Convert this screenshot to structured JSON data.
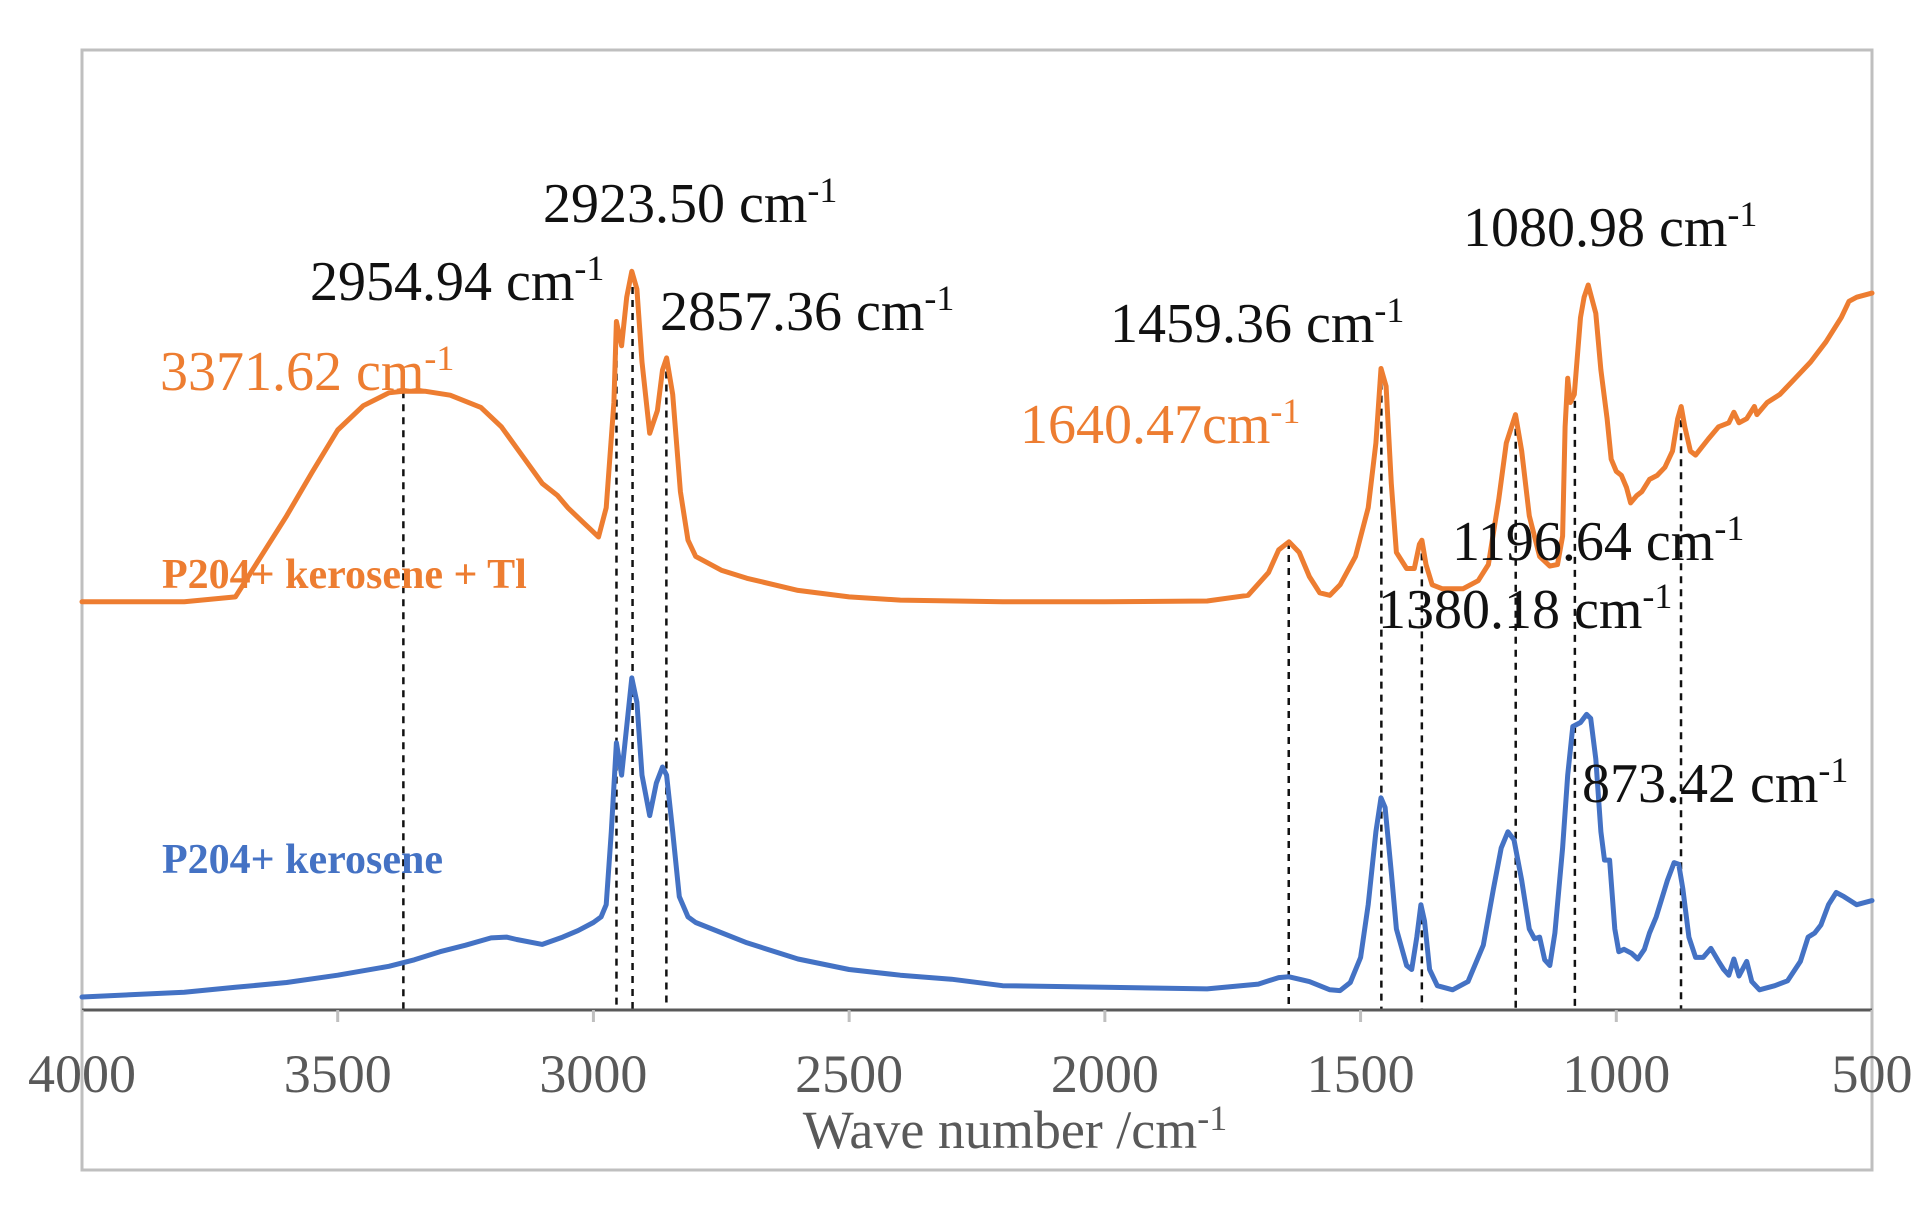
{
  "chart_data": {
    "type": "line",
    "title": "",
    "xlabel": "Wave number /cm-1",
    "ylabel": "",
    "x_reversed": true,
    "xlim": [
      4000,
      500
    ],
    "ylim": [
      0,
      100
    ],
    "y_axis_shown": false,
    "grid": false,
    "x_ticks": [
      4000,
      3500,
      3000,
      2500,
      2000,
      1500,
      1000,
      500
    ],
    "colors": {
      "tl": "#ed7d31",
      "base": "#4472c4",
      "axis": "#bfbfbf",
      "tick_text": "#595959",
      "annot": "#111111"
    },
    "series": [
      {
        "name": "P204+ kerosene + Tl",
        "color": "#ed7d31",
        "points": [
          [
            4000,
            50.4
          ],
          [
            3800,
            50.4
          ],
          [
            3700,
            51.0
          ],
          [
            3650,
            56.0
          ],
          [
            3600,
            61.0
          ],
          [
            3550,
            66.4
          ],
          [
            3500,
            71.6
          ],
          [
            3450,
            74.6
          ],
          [
            3400,
            76.2
          ],
          [
            3370,
            76.4
          ],
          [
            3330,
            76.4
          ],
          [
            3280,
            75.9
          ],
          [
            3220,
            74.4
          ],
          [
            3180,
            72.0
          ],
          [
            3140,
            68.5
          ],
          [
            3100,
            65.0
          ],
          [
            3070,
            63.5
          ],
          [
            3050,
            62.0
          ],
          [
            3020,
            60.2
          ],
          [
            3000,
            59.0
          ],
          [
            2990,
            58.4
          ],
          [
            2975,
            62.0
          ],
          [
            2960,
            75.0
          ],
          [
            2955,
            85.0
          ],
          [
            2945,
            82.0
          ],
          [
            2935,
            88.0
          ],
          [
            2925,
            91.2
          ],
          [
            2915,
            89.0
          ],
          [
            2905,
            80.0
          ],
          [
            2890,
            71.2
          ],
          [
            2875,
            74.0
          ],
          [
            2865,
            79.0
          ],
          [
            2857,
            80.5
          ],
          [
            2845,
            76.0
          ],
          [
            2830,
            64.0
          ],
          [
            2815,
            58.0
          ],
          [
            2800,
            56.0
          ],
          [
            2750,
            54.3
          ],
          [
            2700,
            53.3
          ],
          [
            2600,
            51.8
          ],
          [
            2500,
            51.0
          ],
          [
            2400,
            50.6
          ],
          [
            2200,
            50.4
          ],
          [
            2000,
            50.4
          ],
          [
            1800,
            50.5
          ],
          [
            1720,
            51.2
          ],
          [
            1680,
            54.0
          ],
          [
            1660,
            56.8
          ],
          [
            1640,
            57.8
          ],
          [
            1620,
            56.5
          ],
          [
            1600,
            53.5
          ],
          [
            1580,
            51.5
          ],
          [
            1560,
            51.2
          ],
          [
            1540,
            52.5
          ],
          [
            1510,
            56.0
          ],
          [
            1485,
            62.0
          ],
          [
            1470,
            70.0
          ],
          [
            1460,
            79.2
          ],
          [
            1450,
            77.0
          ],
          [
            1440,
            65.0
          ],
          [
            1430,
            56.5
          ],
          [
            1410,
            54.5
          ],
          [
            1395,
            54.5
          ],
          [
            1385,
            57.5
          ],
          [
            1380,
            58.0
          ],
          [
            1372,
            55.0
          ],
          [
            1360,
            52.5
          ],
          [
            1340,
            52.0
          ],
          [
            1300,
            52.0
          ],
          [
            1270,
            53.0
          ],
          [
            1250,
            55.0
          ],
          [
            1230,
            63.0
          ],
          [
            1215,
            70.0
          ],
          [
            1197,
            73.5
          ],
          [
            1185,
            69.0
          ],
          [
            1170,
            61.0
          ],
          [
            1150,
            56.0
          ],
          [
            1130,
            54.8
          ],
          [
            1115,
            55.0
          ],
          [
            1105,
            58.5
          ],
          [
            1100,
            72.0
          ],
          [
            1095,
            78.0
          ],
          [
            1090,
            75.0
          ],
          [
            1082,
            76.0
          ],
          [
            1070,
            85.5
          ],
          [
            1063,
            88.0
          ],
          [
            1055,
            89.5
          ],
          [
            1040,
            86.0
          ],
          [
            1030,
            79.0
          ],
          [
            1018,
            73.0
          ],
          [
            1010,
            68.0
          ],
          [
            1000,
            66.5
          ],
          [
            990,
            66.0
          ],
          [
            980,
            64.5
          ],
          [
            972,
            62.6
          ],
          [
            960,
            63.5
          ],
          [
            950,
            64.0
          ],
          [
            935,
            65.5
          ],
          [
            920,
            66.0
          ],
          [
            905,
            67.0
          ],
          [
            890,
            69.0
          ],
          [
            880,
            73.0
          ],
          [
            873,
            74.5
          ],
          [
            866,
            72.0
          ],
          [
            855,
            69.0
          ],
          [
            845,
            68.5
          ],
          [
            820,
            70.5
          ],
          [
            800,
            72.0
          ],
          [
            780,
            72.5
          ],
          [
            770,
            73.8
          ],
          [
            760,
            72.5
          ],
          [
            745,
            73.0
          ],
          [
            730,
            74.5
          ],
          [
            725,
            73.5
          ],
          [
            705,
            75.0
          ],
          [
            680,
            76.0
          ],
          [
            650,
            78.0
          ],
          [
            620,
            80.0
          ],
          [
            590,
            82.5
          ],
          [
            560,
            85.5
          ],
          [
            545,
            87.5
          ],
          [
            530,
            88.0
          ],
          [
            500,
            88.5
          ]
        ]
      },
      {
        "name": "P204+ kerosene",
        "color": "#4472c4",
        "points": [
          [
            4000,
            1.6
          ],
          [
            3800,
            2.2
          ],
          [
            3700,
            2.8
          ],
          [
            3600,
            3.4
          ],
          [
            3500,
            4.3
          ],
          [
            3400,
            5.4
          ],
          [
            3350,
            6.2
          ],
          [
            3300,
            7.2
          ],
          [
            3250,
            8.0
          ],
          [
            3200,
            8.9
          ],
          [
            3170,
            9.0
          ],
          [
            3150,
            8.7
          ],
          [
            3100,
            8.1
          ],
          [
            3060,
            9.0
          ],
          [
            3030,
            9.8
          ],
          [
            3000,
            10.8
          ],
          [
            2985,
            11.5
          ],
          [
            2975,
            13.0
          ],
          [
            2965,
            22.0
          ],
          [
            2955,
            33.0
          ],
          [
            2945,
            29.0
          ],
          [
            2935,
            35.0
          ],
          [
            2925,
            41.0
          ],
          [
            2915,
            38.0
          ],
          [
            2905,
            29.0
          ],
          [
            2890,
            24.0
          ],
          [
            2877,
            28.0
          ],
          [
            2865,
            30.0
          ],
          [
            2857,
            29.0
          ],
          [
            2845,
            22.0
          ],
          [
            2832,
            14.0
          ],
          [
            2815,
            11.5
          ],
          [
            2800,
            10.8
          ],
          [
            2700,
            8.3
          ],
          [
            2600,
            6.3
          ],
          [
            2500,
            5.0
          ],
          [
            2400,
            4.3
          ],
          [
            2300,
            3.8
          ],
          [
            2200,
            3.0
          ],
          [
            2000,
            2.8
          ],
          [
            1800,
            2.6
          ],
          [
            1700,
            3.2
          ],
          [
            1660,
            4.0
          ],
          [
            1640,
            4.1
          ],
          [
            1600,
            3.5
          ],
          [
            1560,
            2.5
          ],
          [
            1540,
            2.4
          ],
          [
            1520,
            3.4
          ],
          [
            1500,
            6.5
          ],
          [
            1485,
            13.0
          ],
          [
            1470,
            22.0
          ],
          [
            1460,
            26.2
          ],
          [
            1452,
            25.0
          ],
          [
            1440,
            17.0
          ],
          [
            1430,
            10.0
          ],
          [
            1410,
            5.5
          ],
          [
            1400,
            5.0
          ],
          [
            1390,
            9.0
          ],
          [
            1382,
            13.0
          ],
          [
            1375,
            11.0
          ],
          [
            1365,
            5.0
          ],
          [
            1350,
            3.0
          ],
          [
            1320,
            2.5
          ],
          [
            1290,
            3.5
          ],
          [
            1260,
            8.0
          ],
          [
            1240,
            15.0
          ],
          [
            1225,
            20.0
          ],
          [
            1212,
            22.0
          ],
          [
            1200,
            21.0
          ],
          [
            1185,
            16.0
          ],
          [
            1170,
            10.0
          ],
          [
            1160,
            8.8
          ],
          [
            1150,
            9.0
          ],
          [
            1140,
            6.2
          ],
          [
            1130,
            5.5
          ],
          [
            1120,
            9.5
          ],
          [
            1105,
            20.0
          ],
          [
            1095,
            29.0
          ],
          [
            1085,
            35.0
          ],
          [
            1070,
            35.5
          ],
          [
            1058,
            36.5
          ],
          [
            1050,
            36.0
          ],
          [
            1040,
            31.0
          ],
          [
            1030,
            22.0
          ],
          [
            1023,
            18.5
          ],
          [
            1013,
            18.5
          ],
          [
            1003,
            10.0
          ],
          [
            995,
            7.2
          ],
          [
            985,
            7.5
          ],
          [
            970,
            7.0
          ],
          [
            958,
            6.3
          ],
          [
            945,
            7.5
          ],
          [
            935,
            9.5
          ],
          [
            922,
            11.5
          ],
          [
            900,
            16.0
          ],
          [
            887,
            18.2
          ],
          [
            878,
            18.0
          ],
          [
            870,
            15.0
          ],
          [
            858,
            9.0
          ],
          [
            845,
            6.5
          ],
          [
            830,
            6.5
          ],
          [
            815,
            7.6
          ],
          [
            800,
            6.0
          ],
          [
            790,
            5.0
          ],
          [
            780,
            4.3
          ],
          [
            770,
            6.3
          ],
          [
            760,
            4.2
          ],
          [
            745,
            6.0
          ],
          [
            735,
            3.5
          ],
          [
            720,
            2.5
          ],
          [
            690,
            3.0
          ],
          [
            665,
            3.6
          ],
          [
            640,
            6.0
          ],
          [
            625,
            9.0
          ],
          [
            612,
            9.5
          ],
          [
            600,
            10.5
          ],
          [
            585,
            13.0
          ],
          [
            570,
            14.5
          ],
          [
            555,
            14.0
          ],
          [
            530,
            13.0
          ],
          [
            500,
            13.5
          ]
        ]
      }
    ],
    "dashed_markers": [
      3371.62,
      2954.94,
      2923.5,
      2857.36,
      1640.47,
      1459.36,
      1380.18,
      1196.64,
      1080.98,
      873.42
    ],
    "series_labels": [
      {
        "text": "P204+ kerosene + Tl",
        "series": "P204+ kerosene + Tl"
      },
      {
        "text": "P204+ kerosene",
        "series": "P204+ kerosene"
      }
    ],
    "annotations": [
      {
        "value": "3371.62 cm",
        "sup": "-1",
        "color": "#ed7d31"
      },
      {
        "value": "2954.94 cm",
        "sup": "-1",
        "color": "#111111"
      },
      {
        "value": "2923.50 cm",
        "sup": "-1",
        "color": "#111111"
      },
      {
        "value": "2857.36 cm",
        "sup": "-1",
        "color": "#111111"
      },
      {
        "value": "1640.47cm",
        "sup": "-1",
        "color": "#ed7d31"
      },
      {
        "value": "1459.36 cm",
        "sup": "-1",
        "color": "#111111"
      },
      {
        "value": "1080.98 cm",
        "sup": "-1",
        "color": "#111111"
      },
      {
        "value": "1196.64 cm",
        "sup": "-1",
        "color": "#111111"
      },
      {
        "value": "1380.18 cm",
        "sup": "-1",
        "color": "#111111"
      },
      {
        "value": "873.42 cm",
        "sup": "-1",
        "color": "#111111"
      }
    ]
  }
}
